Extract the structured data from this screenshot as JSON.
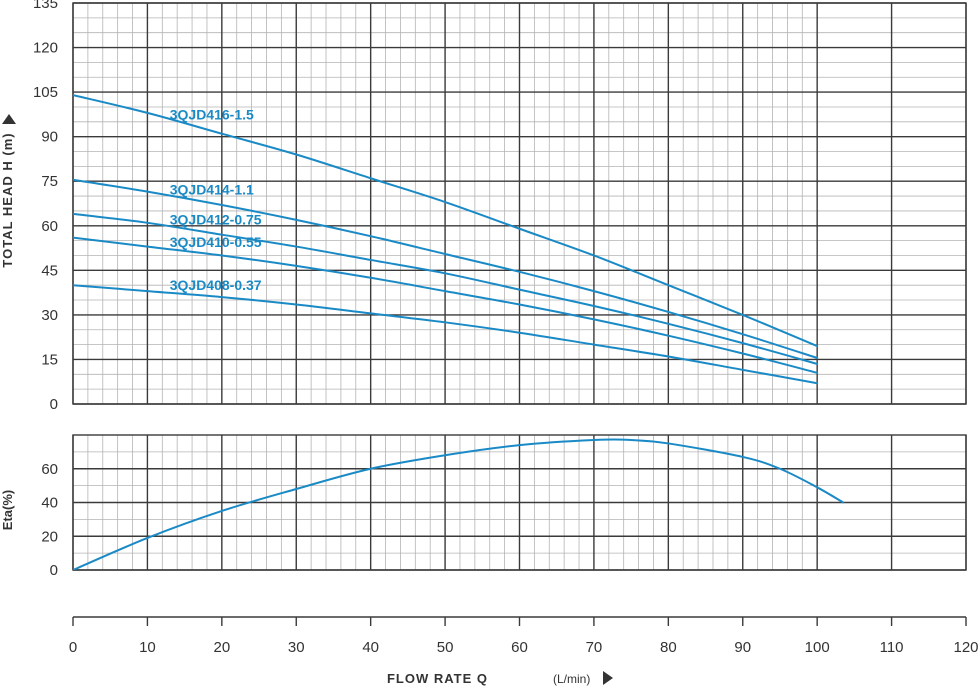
{
  "chart_data": {
    "type": "line",
    "x_axis": {
      "label": "FLOW RATE Q",
      "unit": "(L/min)",
      "range": [
        0,
        120
      ],
      "ticks": [
        0,
        10,
        20,
        30,
        40,
        50,
        60,
        70,
        80,
        90,
        100,
        110,
        120
      ],
      "tick_labels": [
        "0",
        "10",
        "20",
        "30",
        "40",
        "50",
        "60",
        "70",
        "80",
        "90",
        "100",
        "110",
        "120"
      ]
    },
    "colors": {
      "curve": "#1a8ac6",
      "grid_major": "#3a3a3a",
      "grid_minor": "#b4b4b4",
      "text": "#333333"
    },
    "panels": [
      {
        "id": "head",
        "ylabel": "TOTAL HEAD H (m)",
        "ylim": [
          0,
          135
        ],
        "y_ticks": [
          0,
          15,
          30,
          45,
          60,
          75,
          90,
          105,
          120,
          135
        ],
        "y_tick_labels": [
          "0",
          "15",
          "30",
          "45",
          "60",
          "75",
          "90",
          "105",
          "120",
          "135"
        ],
        "grid": true,
        "series": [
          {
            "name": "3QJD416-1.5",
            "x": [
              0,
              10,
              20,
              30,
              40,
              50,
              60,
              70,
              80,
              90,
              100
            ],
            "y": [
              104,
              98,
              91,
              84,
              76,
              68,
              59,
              50,
              40,
              30,
              19.5
            ]
          },
          {
            "name": "3QJD414-1.1",
            "x": [
              0,
              10,
              20,
              30,
              40,
              50,
              60,
              70,
              80,
              90,
              100
            ],
            "y": [
              75.5,
              71.5,
              67,
              62,
              56.5,
              50.5,
              44.5,
              38,
              31,
              23.5,
              15.5
            ]
          },
          {
            "name": "3QJD412-0.75",
            "x": [
              0,
              10,
              20,
              30,
              40,
              50,
              60,
              70,
              80,
              90,
              100
            ],
            "y": [
              64,
              61,
              57,
              53,
              48.5,
              44,
              38.5,
              33,
              27,
              20.5,
              13.5
            ]
          },
          {
            "name": "3QJD410-0.55",
            "x": [
              0,
              10,
              20,
              30,
              40,
              50,
              60,
              70,
              80,
              90,
              100
            ],
            "y": [
              56,
              53,
              50,
              46.5,
              42.5,
              38,
              33.5,
              28.5,
              23,
              17,
              10.5
            ]
          },
          {
            "name": "3QJD408-0.37",
            "x": [
              0,
              10,
              20,
              30,
              40,
              50,
              60,
              70,
              80,
              90,
              100
            ],
            "y": [
              40,
              38,
              36,
              33.5,
              30.5,
              27.5,
              24,
              20,
              16,
              11.5,
              7
            ]
          }
        ]
      },
      {
        "id": "eta",
        "ylabel": "Eta(%)",
        "ylim": [
          0,
          80
        ],
        "y_ticks": [
          0,
          20,
          40,
          60
        ],
        "y_tick_labels": [
          "0",
          "20",
          "40",
          "60"
        ],
        "grid": true,
        "series": [
          {
            "name": "",
            "x": [
              0,
              10,
              20,
              30,
              40,
              50,
              60,
              70,
              75,
              80,
              90,
              95,
              100,
              103.5
            ],
            "y": [
              0,
              19,
              35,
              48,
              60,
              68,
              74,
              77,
              77,
              75,
              67,
              60,
              49,
              40
            ]
          }
        ]
      }
    ]
  }
}
